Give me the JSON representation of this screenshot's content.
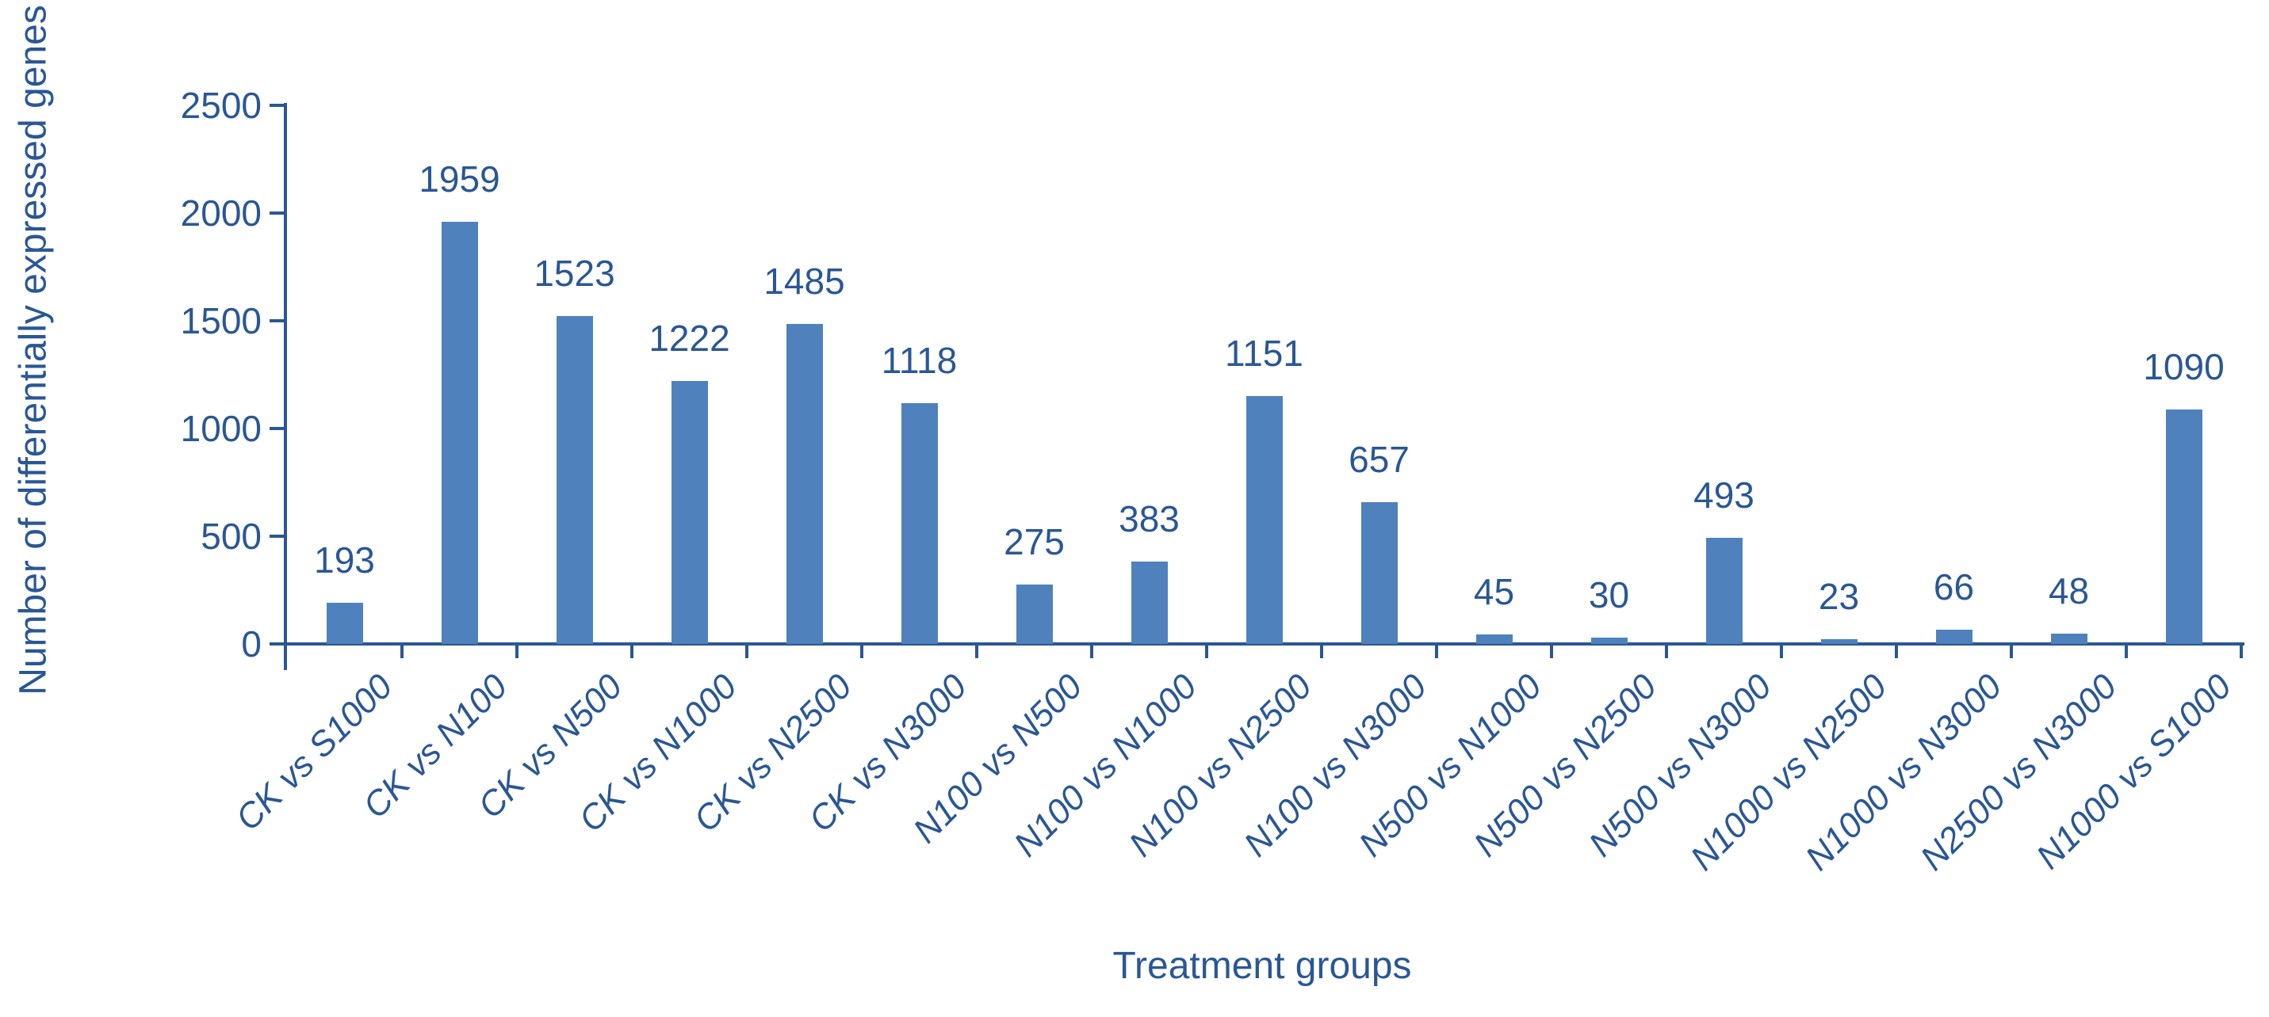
{
  "chart_data": {
    "type": "bar",
    "title": "",
    "xlabel": "Treatment groups",
    "ylabel": "Number of differentially expressed genes",
    "categories": [
      "CK vs S1000",
      "CK vs N100",
      "CK vs N500",
      "CK vs N1000",
      "CK vs N2500",
      "CK vs N3000",
      "N100 vs N500",
      "N100 vs N1000",
      "N100 vs N2500",
      "N100 vs N3000",
      "N500 vs N1000",
      "N500 vs N2500",
      "N500 vs N3000",
      "N1000 vs N2500",
      "N1000 vs N3000",
      "N2500 vs N3000",
      "N1000 vs S1000"
    ],
    "values": [
      193,
      1959,
      1523,
      1222,
      1485,
      1118,
      275,
      383,
      1151,
      657,
      45,
      30,
      493,
      23,
      66,
      48,
      1090
    ],
    "ylim": [
      0,
      2500
    ],
    "yticks": [
      0,
      500,
      1000,
      1500,
      2000,
      2500
    ],
    "grid": false,
    "legend_position": "none",
    "data_labels_shown": true,
    "bar_color": "#4f81bd",
    "ink_color": "#2a5794"
  }
}
